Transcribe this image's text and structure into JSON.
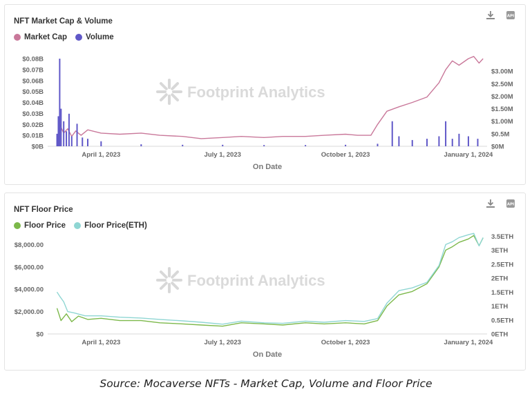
{
  "chart_data": [
    {
      "type": "bar+line",
      "title": "NFT Market Cap & Volume",
      "xlabel": "On Date",
      "x_range": [
        "2023-02-20",
        "2024-01-15"
      ],
      "x_ticks": [
        {
          "date": "2023-04-01",
          "label": "April 1, 2023"
        },
        {
          "date": "2023-07-01",
          "label": "July 1, 2023"
        },
        {
          "date": "2023-10-01",
          "label": "October 1, 2023"
        },
        {
          "date": "2024-01-01",
          "label": "January 1, 2024"
        }
      ],
      "y_left": {
        "range": [
          0,
          80000000
        ],
        "ticks": [
          "$0B",
          "$0.01B",
          "$0.02B",
          "$0.03B",
          "$0.04B",
          "$0.05B",
          "$0.06B",
          "$0.07B",
          "$0.08B"
        ]
      },
      "y_right": {
        "range": [
          0,
          3500000
        ],
        "ticks": [
          "$0M",
          "$0.5M",
          "$1.00M",
          "$1.50M",
          "$2.00M",
          "$2.50M",
          "$3.00M"
        ]
      },
      "grid": false,
      "legend_placement": "top-left",
      "series": [
        {
          "name": "Market Cap",
          "axis": "left",
          "kind": "line",
          "color": "#c9789a",
          "points": [
            [
              "2023-02-27",
              2000000
            ],
            [
              "2023-03-01",
              20000000
            ],
            [
              "2023-03-04",
              12000000
            ],
            [
              "2023-03-07",
              16000000
            ],
            [
              "2023-03-10",
              9000000
            ],
            [
              "2023-03-13",
              14000000
            ],
            [
              "2023-03-17",
              10000000
            ],
            [
              "2023-03-22",
              15000000
            ],
            [
              "2023-04-01",
              12000000
            ],
            [
              "2023-04-15",
              11000000
            ],
            [
              "2023-05-01",
              12000000
            ],
            [
              "2023-05-15",
              10000000
            ],
            [
              "2023-06-01",
              9000000
            ],
            [
              "2023-06-15",
              7000000
            ],
            [
              "2023-07-01",
              8000000
            ],
            [
              "2023-07-15",
              9000000
            ],
            [
              "2023-08-01",
              8000000
            ],
            [
              "2023-08-15",
              9000000
            ],
            [
              "2023-09-01",
              9000000
            ],
            [
              "2023-09-15",
              10000000
            ],
            [
              "2023-10-01",
              11000000
            ],
            [
              "2023-10-10",
              10000000
            ],
            [
              "2023-10-20",
              10000000
            ],
            [
              "2023-10-25",
              20000000
            ],
            [
              "2023-11-01",
              32000000
            ],
            [
              "2023-11-10",
              36000000
            ],
            [
              "2023-11-20",
              40000000
            ],
            [
              "2023-12-01",
              45000000
            ],
            [
              "2023-12-10",
              58000000
            ],
            [
              "2023-12-15",
              70000000
            ],
            [
              "2023-12-20",
              78000000
            ],
            [
              "2023-12-25",
              74000000
            ],
            [
              "2024-01-01",
              80000000
            ],
            [
              "2024-01-05",
              82000000
            ],
            [
              "2024-01-09",
              76000000
            ],
            [
              "2024-01-12",
              80000000
            ]
          ]
        },
        {
          "name": "Volume",
          "axis": "right",
          "kind": "bar",
          "color": "#6058c8",
          "points": [
            [
              "2023-02-27",
              500000
            ],
            [
              "2023-02-28",
              1200000
            ],
            [
              "2023-03-01",
              3500000
            ],
            [
              "2023-03-02",
              1500000
            ],
            [
              "2023-03-04",
              1000000
            ],
            [
              "2023-03-06",
              600000
            ],
            [
              "2023-03-08",
              1300000
            ],
            [
              "2023-03-10",
              400000
            ],
            [
              "2023-03-14",
              900000
            ],
            [
              "2023-03-18",
              350000
            ],
            [
              "2023-03-22",
              300000
            ],
            [
              "2023-04-01",
              200000
            ],
            [
              "2023-05-01",
              80000
            ],
            [
              "2023-06-01",
              60000
            ],
            [
              "2023-07-01",
              60000
            ],
            [
              "2023-08-01",
              50000
            ],
            [
              "2023-09-01",
              50000
            ],
            [
              "2023-10-01",
              60000
            ],
            [
              "2023-10-25",
              100000
            ],
            [
              "2023-11-05",
              1000000
            ],
            [
              "2023-11-10",
              400000
            ],
            [
              "2023-11-20",
              250000
            ],
            [
              "2023-12-01",
              300000
            ],
            [
              "2023-12-10",
              400000
            ],
            [
              "2023-12-15",
              1000000
            ],
            [
              "2023-12-20",
              300000
            ],
            [
              "2023-12-25",
              500000
            ],
            [
              "2024-01-01",
              400000
            ],
            [
              "2024-01-08",
              300000
            ]
          ]
        }
      ]
    },
    {
      "type": "line",
      "title": "NFT Floor Price",
      "xlabel": "On Date",
      "x_range": [
        "2023-02-20",
        "2024-01-15"
      ],
      "x_ticks": [
        {
          "date": "2023-04-01",
          "label": "April 1, 2023"
        },
        {
          "date": "2023-07-01",
          "label": "July 1, 2023"
        },
        {
          "date": "2023-10-01",
          "label": "October 1, 2023"
        },
        {
          "date": "2024-01-01",
          "label": "January 1, 2024"
        }
      ],
      "y_left": {
        "range": [
          0,
          10000
        ],
        "ticks": [
          "$0",
          "$2,000.00",
          "$4,000.00",
          "$6,000.00",
          "$8,000.00"
        ]
      },
      "y_right": {
        "range": [
          0,
          4000
        ],
        "ticks": [
          "0ETH",
          "0.5ETH",
          "1ETH",
          "1.5ETH",
          "2ETH",
          "2.5ETH",
          "3ETH",
          "3.5ETH"
        ]
      },
      "grid": false,
      "legend_placement": "top-left",
      "series": [
        {
          "name": "Floor Price",
          "axis": "left",
          "kind": "line",
          "color": "#7cb84a",
          "points": [
            [
              "2023-02-27",
              2300
            ],
            [
              "2023-03-02",
              1200
            ],
            [
              "2023-03-06",
              1800
            ],
            [
              "2023-03-10",
              1100
            ],
            [
              "2023-03-15",
              1600
            ],
            [
              "2023-03-22",
              1300
            ],
            [
              "2023-04-01",
              1400
            ],
            [
              "2023-04-15",
              1200
            ],
            [
              "2023-05-01",
              1200
            ],
            [
              "2023-05-15",
              1000
            ],
            [
              "2023-06-01",
              900
            ],
            [
              "2023-06-15",
              800
            ],
            [
              "2023-07-01",
              700
            ],
            [
              "2023-07-15",
              1000
            ],
            [
              "2023-08-01",
              900
            ],
            [
              "2023-08-15",
              800
            ],
            [
              "2023-09-01",
              1000
            ],
            [
              "2023-09-15",
              900
            ],
            [
              "2023-10-01",
              1000
            ],
            [
              "2023-10-15",
              900
            ],
            [
              "2023-10-25",
              1200
            ],
            [
              "2023-11-01",
              2500
            ],
            [
              "2023-11-10",
              3500
            ],
            [
              "2023-11-20",
              3800
            ],
            [
              "2023-12-01",
              4500
            ],
            [
              "2023-12-10",
              6000
            ],
            [
              "2023-12-15",
              7500
            ],
            [
              "2023-12-20",
              7800
            ],
            [
              "2023-12-25",
              8200
            ],
            [
              "2024-01-01",
              8500
            ],
            [
              "2024-01-05",
              8800
            ],
            [
              "2024-01-09",
              7900
            ],
            [
              "2024-01-12",
              8600
            ]
          ]
        },
        {
          "name": "Floor Price(ETH)",
          "axis": "right",
          "kind": "line",
          "color": "#8fd6d3",
          "points": [
            [
              "2023-02-27",
              1500
            ],
            [
              "2023-03-01",
              1350
            ],
            [
              "2023-03-04",
              1150
            ],
            [
              "2023-03-07",
              800
            ],
            [
              "2023-03-12",
              750
            ],
            [
              "2023-03-20",
              650
            ],
            [
              "2023-04-01",
              650
            ],
            [
              "2023-04-15",
              600
            ],
            [
              "2023-05-01",
              570
            ],
            [
              "2023-05-15",
              520
            ],
            [
              "2023-06-01",
              470
            ],
            [
              "2023-06-15",
              420
            ],
            [
              "2023-07-01",
              350
            ],
            [
              "2023-07-15",
              460
            ],
            [
              "2023-08-01",
              400
            ],
            [
              "2023-08-15",
              380
            ],
            [
              "2023-09-01",
              460
            ],
            [
              "2023-09-15",
              420
            ],
            [
              "2023-10-01",
              480
            ],
            [
              "2023-10-15",
              450
            ],
            [
              "2023-10-25",
              550
            ],
            [
              "2023-11-01",
              1100
            ],
            [
              "2023-11-10",
              1550
            ],
            [
              "2023-11-20",
              1650
            ],
            [
              "2023-12-01",
              1850
            ],
            [
              "2023-12-10",
              2450
            ],
            [
              "2023-12-15",
              3200
            ],
            [
              "2023-12-20",
              3300
            ],
            [
              "2023-12-25",
              3450
            ],
            [
              "2024-01-01",
              3550
            ],
            [
              "2024-01-05",
              3600
            ],
            [
              "2024-01-09",
              3150
            ],
            [
              "2024-01-12",
              3450
            ]
          ]
        }
      ]
    }
  ],
  "watermark": "Footprint Analytics",
  "caption": "Source: Mocaverse NFTs - Market Cap, Volume and Floor Price",
  "icons": [
    "download-icon",
    "api-icon"
  ]
}
